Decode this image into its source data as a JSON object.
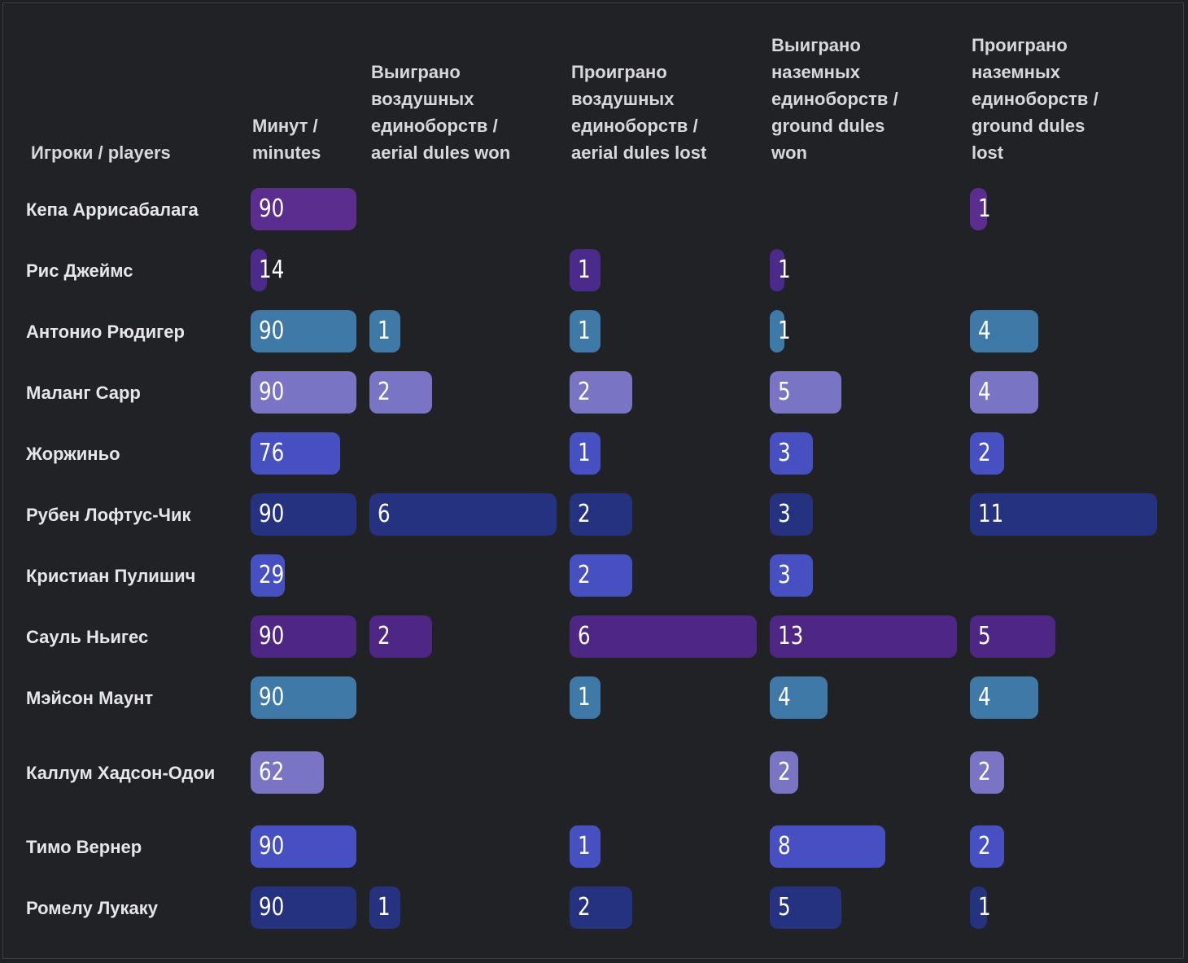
{
  "chart_data": {
    "type": "table",
    "title": "",
    "columns": [
      {
        "key": "minutes",
        "label": "Минут /\nminutes",
        "max": 90
      },
      {
        "key": "aerial_won",
        "label": "Выиграно\nвоздушных\nединоборств /\naerial dules won",
        "max": 6
      },
      {
        "key": "aerial_lost",
        "label": "Проиграно\nвоздушных\nединоборств /\naerial dules lost",
        "max": 6
      },
      {
        "key": "ground_won",
        "label": "Выиграно\nназемных\nединоборств /\nground dules\nwon",
        "max": 13
      },
      {
        "key": "ground_lost",
        "label": "Проиграно\nназемных\nединоборств /\nground dules\nlost",
        "max": 11
      }
    ],
    "players_header": "Игроки / players",
    "rows": [
      {
        "player": "Кепа Аррисабалага",
        "color": "#5b2d8e",
        "values": [
          90,
          null,
          null,
          null,
          1
        ]
      },
      {
        "player": "Рис Джеймс",
        "color": "#4a2a8a",
        "values": [
          14,
          null,
          1,
          1,
          null
        ]
      },
      {
        "player": "Антонио Рюдигер",
        "color": "#3f79a8",
        "values": [
          90,
          1,
          1,
          1,
          4
        ]
      },
      {
        "player": "Маланг Сарр",
        "color": "#7a74c4",
        "values": [
          90,
          2,
          2,
          5,
          4
        ]
      },
      {
        "player": "Жоржиньо",
        "color": "#4650c0",
        "values": [
          76,
          null,
          1,
          3,
          2
        ]
      },
      {
        "player": "Рубен Лофтус-Чик",
        "color": "#253280",
        "values": [
          90,
          6,
          2,
          3,
          11
        ]
      },
      {
        "player": "Кристиан Пулишич",
        "color": "#4650c0",
        "values": [
          29,
          null,
          2,
          3,
          null
        ]
      },
      {
        "player": "Сауль Ньигес",
        "color": "#4e2785",
        "values": [
          90,
          2,
          6,
          13,
          5
        ]
      },
      {
        "player": "Мэйсон Маунт",
        "color": "#3f79a8",
        "values": [
          90,
          null,
          1,
          4,
          4
        ]
      },
      {
        "player": "Каллум Хадсон-Одои",
        "color": "#7a74c4",
        "values": [
          62,
          null,
          null,
          2,
          2
        ]
      },
      {
        "player": "Тимо Вернер",
        "color": "#4650c0",
        "values": [
          90,
          null,
          1,
          8,
          2
        ]
      },
      {
        "player": "Ромелу Лукаку",
        "color": "#253280",
        "values": [
          90,
          1,
          2,
          5,
          1
        ]
      }
    ]
  }
}
